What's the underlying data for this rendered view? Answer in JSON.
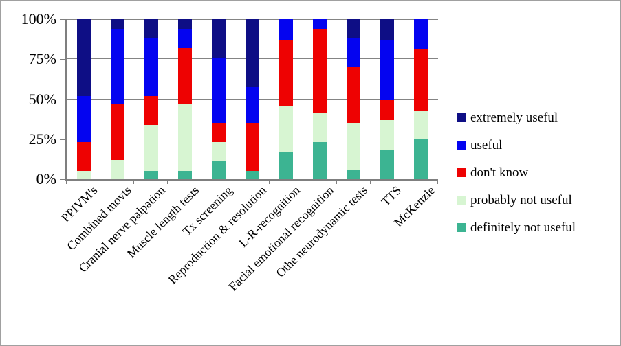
{
  "figure": {
    "background_color": "#ffffff",
    "frame_border_color": "#a0a0a0",
    "axis_color": "#7f7f7f",
    "gridline_color": "#848484"
  },
  "y_axis": {
    "tick_labels": [
      "100%",
      "75%",
      "50%",
      "25%",
      "0%"
    ]
  },
  "chart_data": {
    "type": "bar",
    "subtype": "stacked-100-percent-column",
    "units": "percent",
    "title": "",
    "xlabel": "",
    "ylabel": "",
    "ylim": [
      0,
      100
    ],
    "grid": true,
    "legend_position": "right",
    "y_tick_labels": [
      "0%",
      "25%",
      "50%",
      "75%",
      "100%"
    ],
    "categories": [
      "PPIVM's",
      "Combined movts",
      "Cranial nerve palpation",
      "Muscle length tests",
      "Tx screening",
      "Reproduction & resolution",
      "L-R-recognition",
      "Facial emotional recognition",
      "Othe neurodynamic tests",
      "TTS",
      "McKenzie"
    ],
    "stack_order": "last series at bottom, first series at top",
    "series": [
      {
        "name": "extremely useful",
        "color": "#0e0e85",
        "values": [
          48,
          6,
          12,
          6,
          24,
          42,
          0,
          0,
          12,
          13,
          0
        ]
      },
      {
        "name": "useful",
        "color": "#0404f0",
        "values": [
          29,
          47,
          36,
          12,
          41,
          23,
          13,
          6,
          18,
          37,
          19
        ]
      },
      {
        "name": "don't know",
        "color": "#ee0202",
        "values": [
          18,
          35,
          18,
          35,
          12,
          30,
          41,
          53,
          35,
          13,
          38
        ]
      },
      {
        "name": "probably not useful",
        "color": "#d7f5d2",
        "values": [
          5,
          12,
          29,
          42,
          12,
          0,
          29,
          18,
          29,
          19,
          18
        ]
      },
      {
        "name": "definitely not useful",
        "color": "#3cb492",
        "values": [
          0,
          0,
          5,
          5,
          11,
          5,
          17,
          23,
          6,
          18,
          25
        ]
      }
    ]
  }
}
